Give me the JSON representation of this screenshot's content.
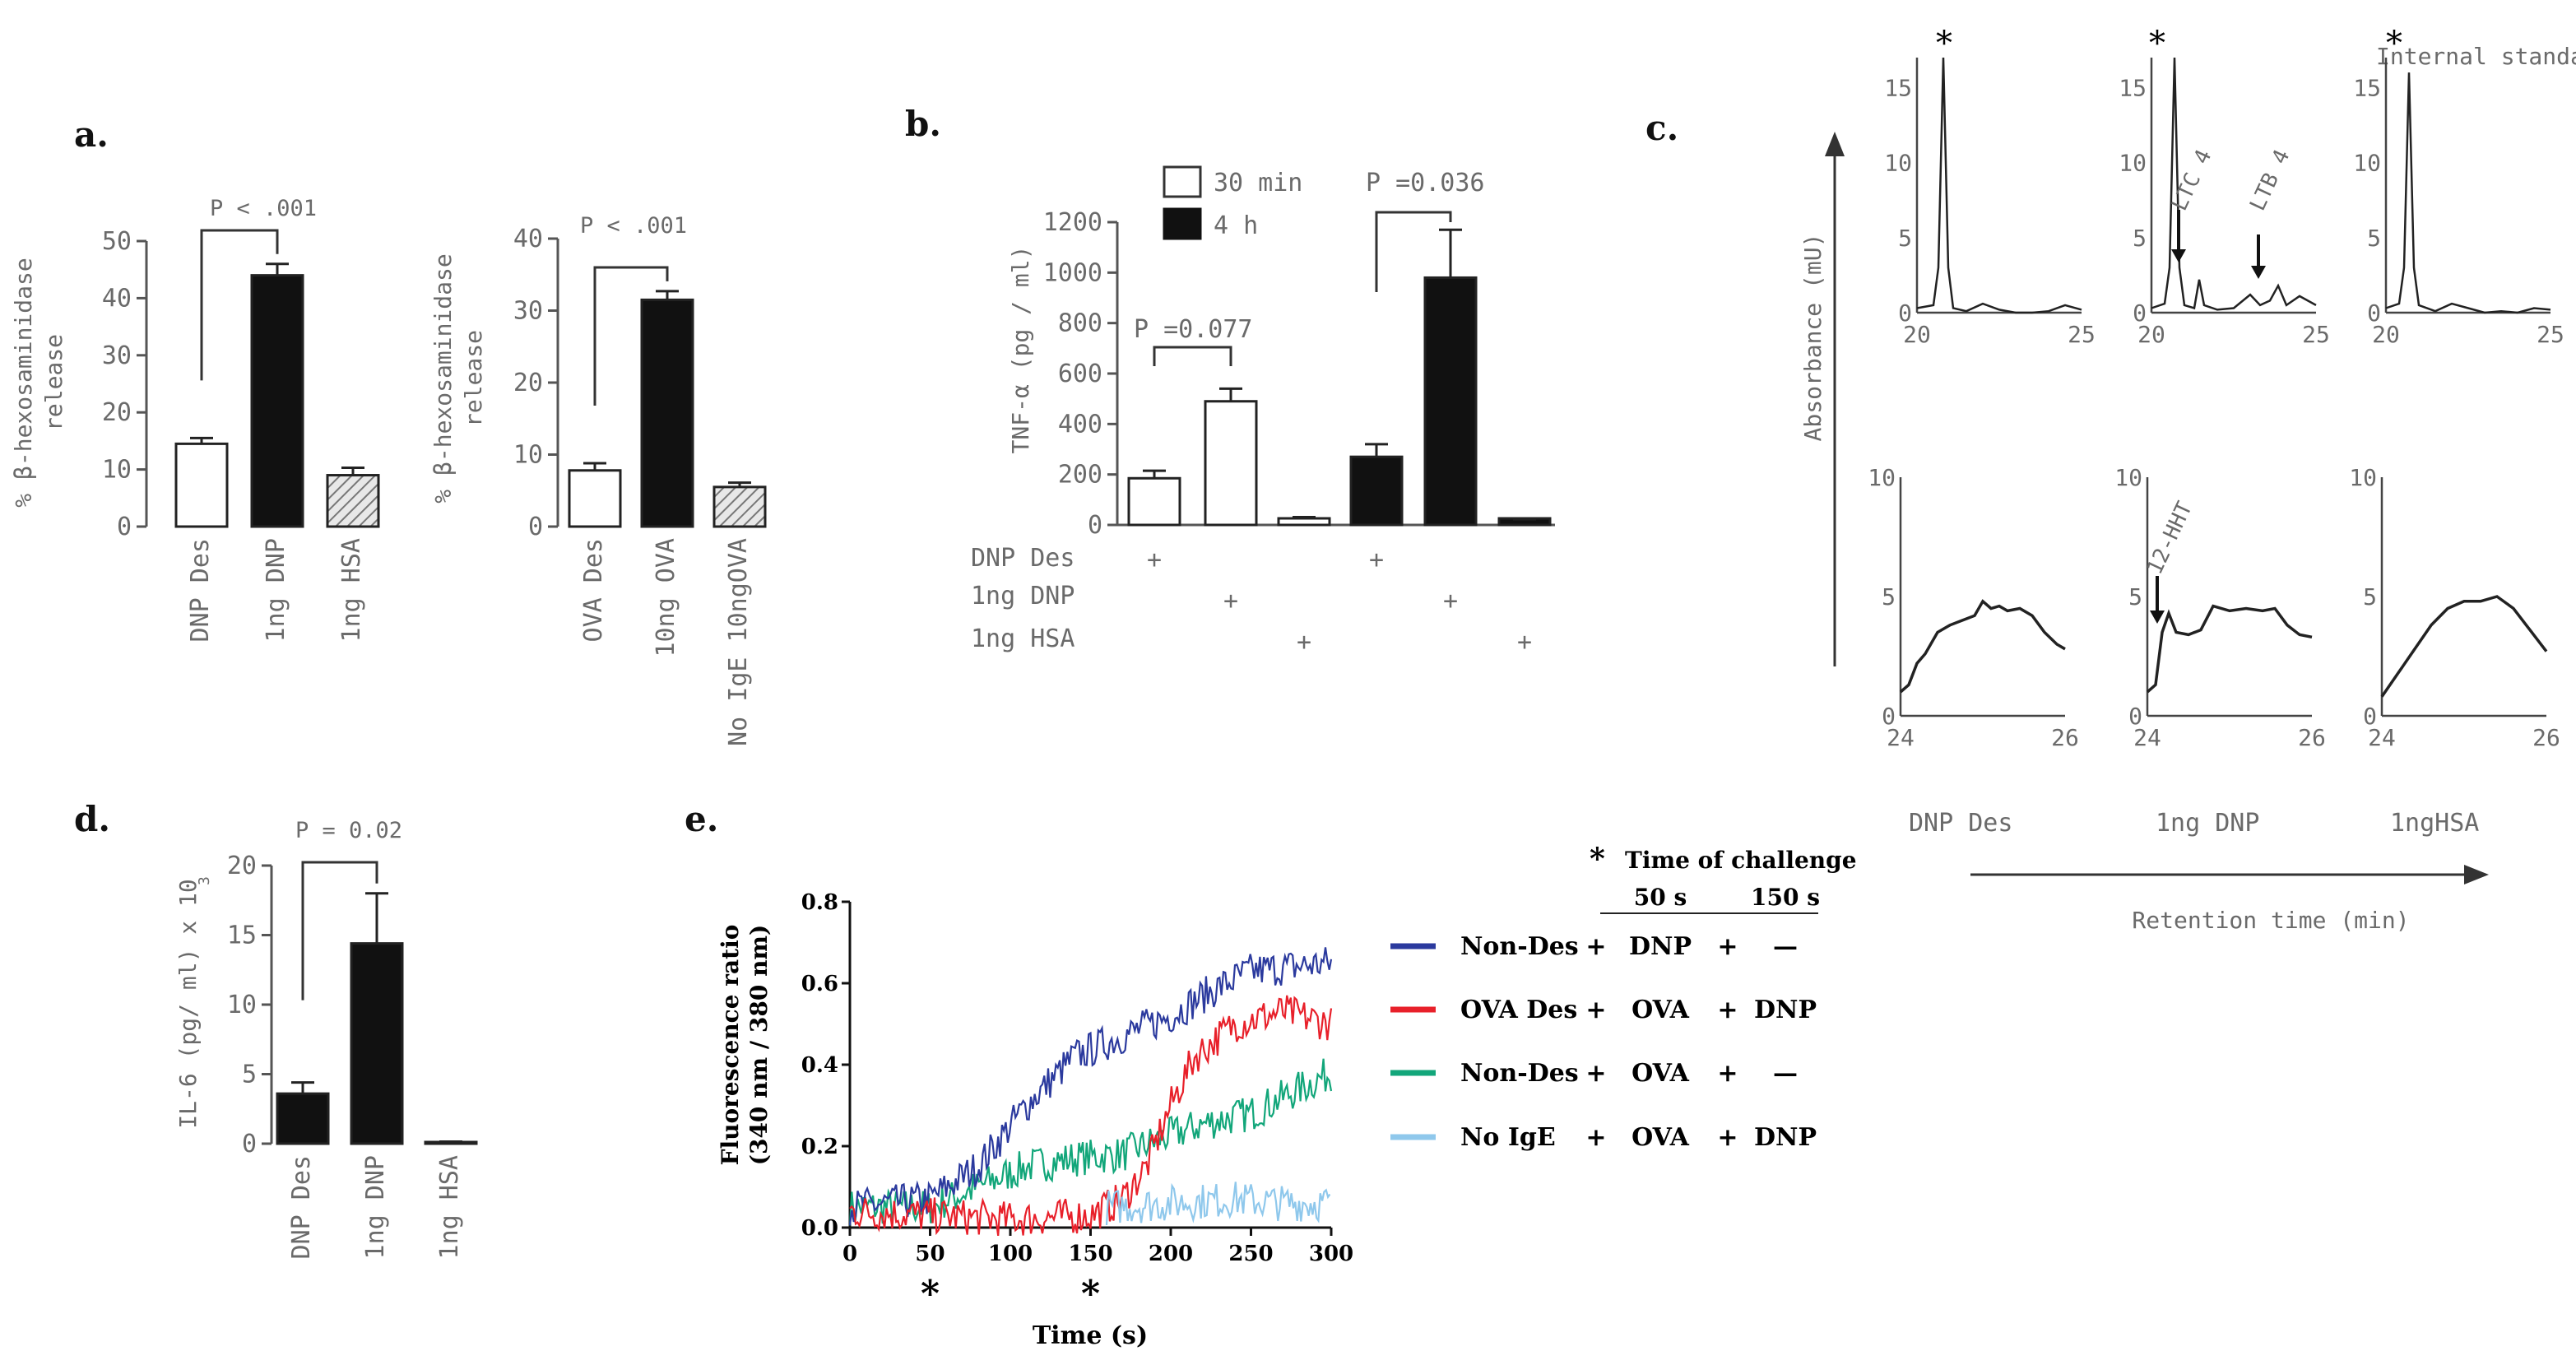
{
  "panel_labels": {
    "a": "a.",
    "b": "b.",
    "c": "c.",
    "d": "d.",
    "e": "e."
  },
  "chart_data": [
    {
      "id": "a1",
      "type": "bar",
      "ylabel_lines": [
        "% β-hexosaminidase",
        "release"
      ],
      "ylim": [
        0,
        50
      ],
      "yticks": [
        0,
        10,
        20,
        30,
        40,
        50
      ],
      "categories": [
        "DNP Des",
        "1ng DNP",
        "1ng HSA"
      ],
      "values": [
        14.5,
        44,
        9
      ],
      "errors": [
        1,
        2,
        1.3
      ],
      "fills": [
        "white",
        "black",
        "hatch"
      ],
      "annotation": "P < .001",
      "bracket": [
        0,
        1
      ]
    },
    {
      "id": "a2",
      "type": "bar",
      "ylabel_lines": [
        "% β-hexosaminidase",
        "release"
      ],
      "ylim": [
        0,
        40
      ],
      "yticks": [
        0,
        10,
        20,
        30,
        40
      ],
      "categories": [
        "OVA Des",
        "10ng OVA",
        "No IgE 10ngOVA"
      ],
      "values": [
        7.8,
        31.5,
        5.5
      ],
      "errors": [
        1,
        1.2,
        0.6
      ],
      "fills": [
        "white",
        "black",
        "hatch"
      ],
      "annotation": "P < .001",
      "bracket": [
        0,
        1
      ]
    },
    {
      "id": "b",
      "type": "bar",
      "ylabel": "TNF-α (pg / ml)",
      "ylim": [
        0,
        1200
      ],
      "yticks": [
        0,
        200,
        400,
        600,
        800,
        1000,
        1200
      ],
      "legend": [
        {
          "name": "30 min",
          "fill": "white"
        },
        {
          "name": "4 h",
          "fill": "black"
        }
      ],
      "groups": [
        {
          "series": "30 min",
          "values": [
            185,
            490,
            25
          ],
          "errors": [
            30,
            50,
            6
          ]
        },
        {
          "series": "4 h",
          "values": [
            270,
            980,
            18
          ],
          "errors": [
            50,
            190,
            5
          ]
        }
      ],
      "annotations": [
        {
          "text": "P =0.077",
          "bracket": [
            0,
            1
          ]
        },
        {
          "text": "P =0.036",
          "bracket": [
            3,
            4
          ]
        }
      ],
      "row_labels": [
        "DNP Des",
        "1ng DNP",
        "1ng HSA"
      ],
      "plus": "+"
    },
    {
      "id": "c",
      "type": "line",
      "ylabel": "Absorbance (mU)",
      "xlabel": "Retention time (min)",
      "star_label": "*",
      "internal_standard": "Internal standard",
      "top_row": {
        "xlim": [
          20,
          25
        ],
        "xticks": [
          20,
          25
        ],
        "ylim": [
          0,
          17
        ],
        "yticks": [
          0,
          5,
          10,
          15
        ],
        "peak_labels": [
          "LTC 4",
          "LTB 4"
        ],
        "panels": [
          {
            "name": "DNP Des",
            "points": [
              [
                20,
                0.3
              ],
              [
                20.5,
                0.5
              ],
              [
                20.65,
                3
              ],
              [
                20.8,
                17
              ],
              [
                20.95,
                3
              ],
              [
                21.1,
                0.3
              ],
              [
                21.5,
                0.1
              ],
              [
                22,
                0.6
              ],
              [
                22.5,
                0.2
              ],
              [
                23,
                0
              ],
              [
                23.5,
                0
              ],
              [
                24,
                0.1
              ],
              [
                24.5,
                0.5
              ],
              [
                25,
                0.2
              ]
            ]
          },
          {
            "name": "1ng DNP",
            "points": [
              [
                20,
                0.3
              ],
              [
                20.4,
                0.6
              ],
              [
                20.55,
                3
              ],
              [
                20.7,
                17
              ],
              [
                20.85,
                3
              ],
              [
                21,
                0.5
              ],
              [
                21.3,
                0.3
              ],
              [
                21.45,
                2.2
              ],
              [
                21.6,
                0.5
              ],
              [
                22,
                0.2
              ],
              [
                22.5,
                0.3
              ],
              [
                23,
                1.2
              ],
              [
                23.3,
                0.5
              ],
              [
                23.6,
                0.8
              ],
              [
                23.85,
                1.8
              ],
              [
                24.1,
                0.5
              ],
              [
                24.5,
                1.1
              ],
              [
                25,
                0.5
              ]
            ]
          },
          {
            "name": "1ngHSA",
            "points": [
              [
                20,
                0.3
              ],
              [
                20.4,
                0.6
              ],
              [
                20.55,
                3
              ],
              [
                20.7,
                16
              ],
              [
                20.85,
                3
              ],
              [
                21,
                0.5
              ],
              [
                21.5,
                0.1
              ],
              [
                22,
                0.6
              ],
              [
                22.5,
                0.3
              ],
              [
                23,
                0
              ],
              [
                23.5,
                0.1
              ],
              [
                24,
                0
              ],
              [
                24.5,
                0.3
              ],
              [
                25,
                0.2
              ]
            ]
          }
        ]
      },
      "bottom_row": {
        "xlim": [
          24,
          26
        ],
        "xticks": [
          24,
          26
        ],
        "ylim": [
          0,
          10
        ],
        "yticks": [
          0,
          5,
          10
        ],
        "peak_labels": [
          "12-HHT"
        ],
        "panels": [
          {
            "name": "DNP Des",
            "points": [
              [
                24,
                1
              ],
              [
                24.1,
                1.3
              ],
              [
                24.2,
                2.2
              ],
              [
                24.3,
                2.6
              ],
              [
                24.45,
                3.5
              ],
              [
                24.6,
                3.8
              ],
              [
                24.75,
                4
              ],
              [
                24.9,
                4.2
              ],
              [
                25,
                4.8
              ],
              [
                25.1,
                4.5
              ],
              [
                25.2,
                4.6
              ],
              [
                25.3,
                4.4
              ],
              [
                25.45,
                4.5
              ],
              [
                25.6,
                4.2
              ],
              [
                25.75,
                3.5
              ],
              [
                25.9,
                3
              ],
              [
                26,
                2.8
              ]
            ]
          },
          {
            "name": "1ng DNP",
            "points": [
              [
                24,
                1
              ],
              [
                24.1,
                1.3
              ],
              [
                24.18,
                3.5
              ],
              [
                24.26,
                4.3
              ],
              [
                24.35,
                3.5
              ],
              [
                24.5,
                3.4
              ],
              [
                24.65,
                3.6
              ],
              [
                24.8,
                4.6
              ],
              [
                25,
                4.4
              ],
              [
                25.2,
                4.5
              ],
              [
                25.4,
                4.4
              ],
              [
                25.55,
                4.5
              ],
              [
                25.7,
                3.8
              ],
              [
                25.85,
                3.4
              ],
              [
                26,
                3.3
              ]
            ]
          },
          {
            "name": "1ngHSA",
            "points": [
              [
                24,
                0.8
              ],
              [
                24.2,
                1.8
              ],
              [
                24.4,
                2.8
              ],
              [
                24.6,
                3.8
              ],
              [
                24.8,
                4.5
              ],
              [
                25,
                4.8
              ],
              [
                25.2,
                4.8
              ],
              [
                25.4,
                5
              ],
              [
                25.6,
                4.5
              ],
              [
                25.8,
                3.6
              ],
              [
                26,
                2.7
              ]
            ]
          }
        ]
      }
    },
    {
      "id": "d",
      "type": "bar",
      "ylabel": "IL-6 (pg/ ml) x 10",
      "ylabel_exponent": "3",
      "ylim": [
        0,
        20
      ],
      "yticks": [
        0,
        5,
        10,
        15,
        20
      ],
      "categories": [
        "DNP Des",
        "1ng DNP",
        "1ng HSA"
      ],
      "values": [
        3.6,
        14.4,
        0.1
      ],
      "errors": [
        0.8,
        3.6,
        0.05
      ],
      "fills": [
        "black",
        "black",
        "black"
      ],
      "annotation": "P = 0.02",
      "bracket": [
        0,
        1
      ]
    },
    {
      "id": "e",
      "type": "line",
      "ylabel_lines": [
        "Fluorescence ratio",
        "(340 nm / 380 nm)"
      ],
      "xlabel": "Time (s)",
      "xlim": [
        0,
        300
      ],
      "xticks": [
        0,
        50,
        100,
        150,
        200,
        250,
        300
      ],
      "ylim": [
        0,
        0.8
      ],
      "yticks": [
        0.0,
        0.2,
        0.4,
        0.6,
        0.8
      ],
      "challenge_times": [
        50,
        150
      ],
      "challenge_header": "Time of challenge",
      "challenge_cols": [
        "50 s",
        "150 s"
      ],
      "series": [
        {
          "name": "Non-Des",
          "color": "#2b3a9e",
          "at50": "DNP",
          "at150": "—",
          "anchors": [
            [
              0,
              0.05
            ],
            [
              50,
              0.07
            ],
            [
              80,
              0.15
            ],
            [
              110,
              0.3
            ],
            [
              140,
              0.42
            ],
            [
              170,
              0.47
            ],
            [
              200,
              0.52
            ],
            [
              225,
              0.58
            ],
            [
              250,
              0.63
            ],
            [
              275,
              0.64
            ],
            [
              300,
              0.65
            ]
          ]
        },
        {
          "name": "OVA Des",
          "color": "#e8202a",
          "at50": "OVA",
          "at150": "DNP",
          "anchors": [
            [
              0,
              0.04
            ],
            [
              50,
              0.03
            ],
            [
              100,
              0.02
            ],
            [
              150,
              0.03
            ],
            [
              170,
              0.07
            ],
            [
              185,
              0.15
            ],
            [
              200,
              0.3
            ],
            [
              215,
              0.42
            ],
            [
              240,
              0.5
            ],
            [
              270,
              0.53
            ],
            [
              300,
              0.5
            ]
          ]
        },
        {
          "name": "Non-Des",
          "color": "#12a67a",
          "at50": "OVA",
          "at150": "—",
          "anchors": [
            [
              0,
              0.05
            ],
            [
              50,
              0.05
            ],
            [
              80,
              0.1
            ],
            [
              110,
              0.15
            ],
            [
              140,
              0.17
            ],
            [
              170,
              0.18
            ],
            [
              195,
              0.22
            ],
            [
              225,
              0.26
            ],
            [
              250,
              0.28
            ],
            [
              275,
              0.33
            ],
            [
              300,
              0.38
            ]
          ]
        },
        {
          "name": "No IgE",
          "color": "#8fc8ec",
          "at50": "OVA",
          "at150": "DNP",
          "anchors": [
            [
              160,
              0.05
            ],
            [
              200,
              0.06
            ],
            [
              240,
              0.07
            ],
            [
              270,
              0.06
            ],
            [
              300,
              0.06
            ]
          ]
        }
      ]
    }
  ]
}
